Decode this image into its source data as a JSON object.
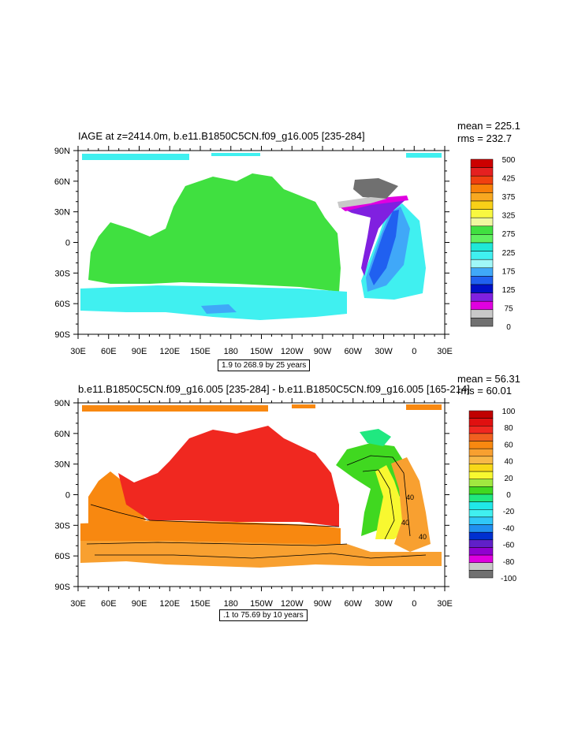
{
  "panels": [
    {
      "title": "IAGE at z=2414.0m, b.e11.B1850C5CN.f09_g16.005 [235-284]",
      "mean": "mean = 225.1",
      "rms": "rms = 232.7",
      "footer": "1.9 to 268.9 by 25 years",
      "lon_labels": [
        "30E",
        "60E",
        "90E",
        "120E",
        "150E",
        "180",
        "150W",
        "120W",
        "90W",
        "60W",
        "30W",
        "0",
        "30E"
      ],
      "lat_labels": [
        "90N",
        "60N",
        "30N",
        "0",
        "30S",
        "60S",
        "90S"
      ],
      "legend": {
        "colors": [
          "#cc0000",
          "#e52020",
          "#f04010",
          "#f88008",
          "#f8a820",
          "#f8d018",
          "#f8f840",
          "#f0f8a0",
          "#40e040",
          "#60f060",
          "#20e8d8",
          "#40f0f0",
          "#a0f8f8",
          "#40a8f8",
          "#2060f0",
          "#0010c8",
          "#8020e0",
          "#e000e0",
          "#c8c8c8",
          "#707070"
        ],
        "labels": [
          "500",
          "425",
          "375",
          "325",
          "275",
          "225",
          "175",
          "125",
          "75",
          "0"
        ]
      },
      "contour_labels": []
    },
    {
      "title": "b.e11.B1850C5CN.f09_g16.005 [235-284] - b.e11.B1850C5CN.f09_g16.005 [165-214]",
      "mean": "mean = 56.31",
      "rms": "rms = 60.01",
      "footer": ".1 to 75.69 by 10 years",
      "lon_labels": [
        "30E",
        "60E",
        "90E",
        "120E",
        "150E",
        "180",
        "150W",
        "120W",
        "90W",
        "60W",
        "30W",
        "0",
        "30E"
      ],
      "lat_labels": [
        "90N",
        "60N",
        "30N",
        "0",
        "30S",
        "60S",
        "90S"
      ],
      "legend": {
        "colors": [
          "#c00000",
          "#e01010",
          "#f02820",
          "#f06020",
          "#f88810",
          "#f8a030",
          "#f8b848",
          "#f8d818",
          "#f8f830",
          "#a0e840",
          "#40d820",
          "#20e880",
          "#20e8e8",
          "#40f0f0",
          "#30c8f8",
          "#2090f0",
          "#0030d0",
          "#6020c8",
          "#9000d0",
          "#e000e0",
          "#c8c8c8",
          "#707070"
        ],
        "labels": [
          "100",
          "80",
          "60",
          "40",
          "20",
          "0",
          "-20",
          "-40",
          "-60",
          "-80",
          "-100"
        ]
      },
      "contour_labels": [
        "40",
        "40",
        "40"
      ]
    }
  ]
}
